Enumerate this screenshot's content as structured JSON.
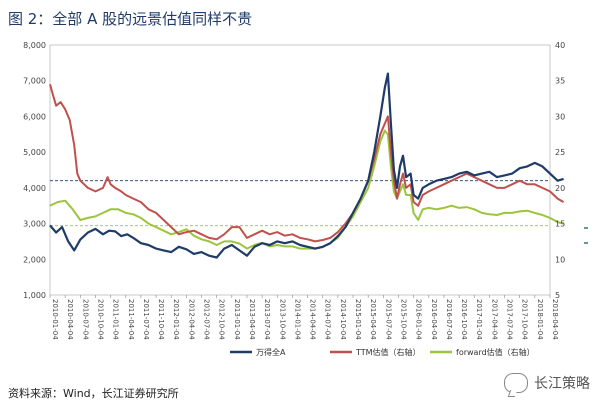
{
  "title": "图 2：全部 A 股的远景估值同样不贵",
  "source": "资料来源：Wind，长江证券研究所",
  "watermark": "长江策略",
  "chart_data": {
    "type": "line",
    "x_labels": [
      "2010-01-04",
      "2010-04-04",
      "2010-07-04",
      "2010-10-04",
      "2011-01-04",
      "2011-04-04",
      "2011-07-04",
      "2011-10-04",
      "2012-01-04",
      "2012-04-04",
      "2012-07-04",
      "2012-10-04",
      "2013-01-04",
      "2013-04-04",
      "2013-07-04",
      "2013-10-04",
      "2014-01-04",
      "2014-04-04",
      "2014-07-04",
      "2014-10-04",
      "2015-01-04",
      "2015-04-04",
      "2015-07-04",
      "2015-10-04",
      "2016-01-04",
      "2016-04-04",
      "2016-07-04",
      "2016-10-04",
      "2017-01-04",
      "2017-04-04",
      "2017-07-04",
      "2017-10-04",
      "2018-01-04",
      "2018-04-04"
    ],
    "ylim_left": [
      1000,
      8000
    ],
    "yticks_left": [
      "1,000",
      "2,000",
      "3,000",
      "4,000",
      "5,000",
      "6,000",
      "7,000",
      "8,000"
    ],
    "ylim_right": [
      5,
      40
    ],
    "yticks_right": [
      "5",
      "10",
      "15",
      "20",
      "25",
      "30",
      "35",
      "40"
    ],
    "reference_lines": [
      {
        "axis": "left",
        "value": 4200,
        "color": "#1f3b68",
        "style": "dashed"
      },
      {
        "axis": "right",
        "value": 14.7,
        "color": "#9cc43c",
        "style": "dashed"
      }
    ],
    "series": [
      {
        "name": "万得全A",
        "axis": "left",
        "color": "#1f3b68",
        "points": [
          [
            0,
            2950
          ],
          [
            0.4,
            2750
          ],
          [
            0.8,
            2900
          ],
          [
            1.2,
            2500
          ],
          [
            1.6,
            2250
          ],
          [
            2.0,
            2550
          ],
          [
            2.5,
            2750
          ],
          [
            3.0,
            2850
          ],
          [
            3.5,
            2700
          ],
          [
            3.9,
            2800
          ],
          [
            4.3,
            2780
          ],
          [
            4.7,
            2650
          ],
          [
            5.1,
            2700
          ],
          [
            5.5,
            2600
          ],
          [
            6.0,
            2450
          ],
          [
            6.5,
            2400
          ],
          [
            7.0,
            2300
          ],
          [
            7.5,
            2250
          ],
          [
            8.0,
            2200
          ],
          [
            8.5,
            2350
          ],
          [
            9.0,
            2280
          ],
          [
            9.5,
            2150
          ],
          [
            10.0,
            2200
          ],
          [
            10.5,
            2100
          ],
          [
            11.0,
            2050
          ],
          [
            11.5,
            2300
          ],
          [
            12.0,
            2400
          ],
          [
            12.5,
            2250
          ],
          [
            13.0,
            2100
          ],
          [
            13.5,
            2350
          ],
          [
            14.0,
            2450
          ],
          [
            14.5,
            2400
          ],
          [
            15.0,
            2500
          ],
          [
            15.5,
            2450
          ],
          [
            16.0,
            2500
          ],
          [
            16.5,
            2400
          ],
          [
            17.0,
            2350
          ],
          [
            17.5,
            2300
          ],
          [
            18.0,
            2350
          ],
          [
            18.5,
            2450
          ],
          [
            19.0,
            2650
          ],
          [
            19.5,
            2900
          ],
          [
            20.0,
            3300
          ],
          [
            20.5,
            3700
          ],
          [
            21.0,
            4200
          ],
          [
            21.4,
            5000
          ],
          [
            21.8,
            6000
          ],
          [
            22.1,
            6800
          ],
          [
            22.3,
            7200
          ],
          [
            22.5,
            5800
          ],
          [
            22.7,
            4500
          ],
          [
            22.9,
            4000
          ],
          [
            23.1,
            4600
          ],
          [
            23.3,
            4900
          ],
          [
            23.5,
            4300
          ],
          [
            23.8,
            4400
          ],
          [
            24.0,
            3800
          ],
          [
            24.3,
            3700
          ],
          [
            24.6,
            4000
          ],
          [
            25.0,
            4100
          ],
          [
            25.5,
            4200
          ],
          [
            26.0,
            4250
          ],
          [
            26.5,
            4300
          ],
          [
            27.0,
            4400
          ],
          [
            27.5,
            4450
          ],
          [
            28.0,
            4350
          ],
          [
            28.5,
            4400
          ],
          [
            29.0,
            4450
          ],
          [
            29.5,
            4300
          ],
          [
            30.0,
            4350
          ],
          [
            30.5,
            4400
          ],
          [
            31.0,
            4550
          ],
          [
            31.5,
            4600
          ],
          [
            32.0,
            4700
          ],
          [
            32.5,
            4600
          ],
          [
            33.0,
            4400
          ],
          [
            33.5,
            4200
          ],
          [
            33.9,
            4250
          ]
        ]
      },
      {
        "name": "TTM估值（右轴）",
        "axis": "right",
        "color": "#c0504d",
        "points": [
          [
            0,
            34.5
          ],
          [
            0.2,
            33.0
          ],
          [
            0.4,
            31.5
          ],
          [
            0.7,
            32.0
          ],
          [
            1.0,
            31.0
          ],
          [
            1.3,
            29.5
          ],
          [
            1.6,
            26.0
          ],
          [
            1.8,
            22.0
          ],
          [
            2.0,
            21.0
          ],
          [
            2.5,
            20.0
          ],
          [
            3.0,
            19.5
          ],
          [
            3.5,
            20.0
          ],
          [
            3.8,
            21.5
          ],
          [
            4.0,
            20.5
          ],
          [
            4.3,
            20.0
          ],
          [
            4.7,
            19.5
          ],
          [
            5.0,
            19.0
          ],
          [
            5.5,
            18.5
          ],
          [
            6.0,
            18.0
          ],
          [
            6.5,
            17.0
          ],
          [
            7.0,
            16.5
          ],
          [
            7.5,
            15.5
          ],
          [
            8.0,
            14.5
          ],
          [
            8.5,
            13.5
          ],
          [
            9.0,
            13.8
          ],
          [
            9.5,
            14.0
          ],
          [
            10.0,
            13.5
          ],
          [
            10.5,
            13.0
          ],
          [
            11.0,
            12.8
          ],
          [
            11.5,
            13.5
          ],
          [
            12.0,
            14.5
          ],
          [
            12.5,
            14.5
          ],
          [
            13.0,
            13.0
          ],
          [
            13.5,
            13.5
          ],
          [
            14.0,
            14.0
          ],
          [
            14.5,
            13.5
          ],
          [
            15.0,
            13.8
          ],
          [
            15.5,
            13.3
          ],
          [
            16.0,
            13.5
          ],
          [
            16.5,
            13.0
          ],
          [
            17.0,
            12.8
          ],
          [
            17.5,
            12.5
          ],
          [
            18.0,
            12.7
          ],
          [
            18.5,
            13.0
          ],
          [
            19.0,
            13.8
          ],
          [
            19.5,
            15.0
          ],
          [
            20.0,
            16.5
          ],
          [
            20.5,
            18.5
          ],
          [
            21.0,
            21.0
          ],
          [
            21.4,
            24.0
          ],
          [
            21.8,
            27.5
          ],
          [
            22.1,
            29.0
          ],
          [
            22.3,
            30.0
          ],
          [
            22.5,
            25.0
          ],
          [
            22.7,
            21.0
          ],
          [
            22.9,
            18.5
          ],
          [
            23.1,
            20.5
          ],
          [
            23.3,
            22.0
          ],
          [
            23.5,
            20.0
          ],
          [
            23.8,
            20.5
          ],
          [
            24.0,
            18.0
          ],
          [
            24.3,
            17.5
          ],
          [
            24.6,
            19.0
          ],
          [
            25.0,
            19.5
          ],
          [
            25.5,
            20.0
          ],
          [
            26.0,
            20.5
          ],
          [
            26.5,
            21.0
          ],
          [
            27.0,
            21.5
          ],
          [
            27.5,
            22.0
          ],
          [
            28.0,
            21.5
          ],
          [
            28.5,
            21.0
          ],
          [
            29.0,
            20.5
          ],
          [
            29.5,
            20.0
          ],
          [
            30.0,
            20.0
          ],
          [
            30.5,
            20.5
          ],
          [
            31.0,
            21.0
          ],
          [
            31.5,
            20.5
          ],
          [
            32.0,
            20.5
          ],
          [
            32.5,
            20.0
          ],
          [
            33.0,
            19.5
          ],
          [
            33.5,
            18.5
          ],
          [
            33.9,
            18.0
          ]
        ]
      },
      {
        "name": "forward估值（右轴）",
        "axis": "right",
        "color": "#9cc43c",
        "points": [
          [
            0,
            17.5
          ],
          [
            0.5,
            18.0
          ],
          [
            1.0,
            18.2
          ],
          [
            1.5,
            17.0
          ],
          [
            2.0,
            15.5
          ],
          [
            2.5,
            15.8
          ],
          [
            3.0,
            16.0
          ],
          [
            3.5,
            16.5
          ],
          [
            4.0,
            17.0
          ],
          [
            4.5,
            17.0
          ],
          [
            5.0,
            16.5
          ],
          [
            5.5,
            16.3
          ],
          [
            6.0,
            15.8
          ],
          [
            6.5,
            15.0
          ],
          [
            7.0,
            14.5
          ],
          [
            7.5,
            14.0
          ],
          [
            8.0,
            13.5
          ],
          [
            8.5,
            13.8
          ],
          [
            9.0,
            14.2
          ],
          [
            9.5,
            13.3
          ],
          [
            10.0,
            12.8
          ],
          [
            10.5,
            12.5
          ],
          [
            11.0,
            12.0
          ],
          [
            11.5,
            12.5
          ],
          [
            12.0,
            12.5
          ],
          [
            12.5,
            12.2
          ],
          [
            13.0,
            11.5
          ],
          [
            13.5,
            12.0
          ],
          [
            14.0,
            12.3
          ],
          [
            14.5,
            11.8
          ],
          [
            15.0,
            12.0
          ],
          [
            15.5,
            11.8
          ],
          [
            16.0,
            11.8
          ],
          [
            16.5,
            11.5
          ],
          [
            17.0,
            11.5
          ],
          [
            17.5,
            11.5
          ],
          [
            18.0,
            11.7
          ],
          [
            18.5,
            12.3
          ],
          [
            19.0,
            13.0
          ],
          [
            19.5,
            14.5
          ],
          [
            20.0,
            16.0
          ],
          [
            20.5,
            18.0
          ],
          [
            21.0,
            20.0
          ],
          [
            21.4,
            23.0
          ],
          [
            21.8,
            26.5
          ],
          [
            22.1,
            28.0
          ],
          [
            22.3,
            27.5
          ],
          [
            22.5,
            23.0
          ],
          [
            22.7,
            19.5
          ],
          [
            22.9,
            18.5
          ],
          [
            23.1,
            19.5
          ],
          [
            23.3,
            20.5
          ],
          [
            23.5,
            19.0
          ],
          [
            23.8,
            19.0
          ],
          [
            24.0,
            16.5
          ],
          [
            24.3,
            15.5
          ],
          [
            24.6,
            17.0
          ],
          [
            25.0,
            17.2
          ],
          [
            25.5,
            17.0
          ],
          [
            26.0,
            17.2
          ],
          [
            26.5,
            17.5
          ],
          [
            27.0,
            17.2
          ],
          [
            27.5,
            17.3
          ],
          [
            28.0,
            17.0
          ],
          [
            28.5,
            16.5
          ],
          [
            29.0,
            16.3
          ],
          [
            29.5,
            16.2
          ],
          [
            30.0,
            16.5
          ],
          [
            30.5,
            16.5
          ],
          [
            31.0,
            16.7
          ],
          [
            31.5,
            16.8
          ],
          [
            32.0,
            16.5
          ],
          [
            32.5,
            16.2
          ],
          [
            33.0,
            15.8
          ],
          [
            33.5,
            15.2
          ],
          [
            33.9,
            15.0
          ]
        ]
      }
    ],
    "legend": {
      "placement": "bottom",
      "items": [
        "万得全A",
        "TTM估值（右轴）",
        "forward估值（右轴）"
      ]
    }
  }
}
